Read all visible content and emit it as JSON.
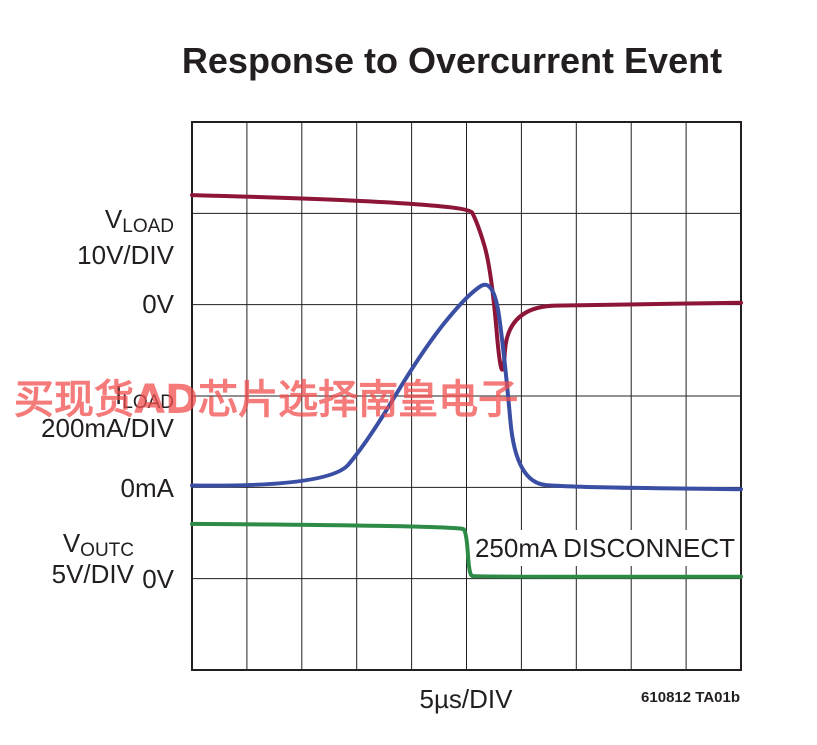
{
  "chart_data": {
    "type": "line",
    "title": "Response to Overcurrent Event",
    "time_scale": "5µs/DIV",
    "figure_id": "610812 TA01b",
    "annotation": "250mA DISCONNECT",
    "x_divisions": 10,
    "y_divisions": 6,
    "grid": true,
    "series": [
      {
        "name": "VLOAD",
        "name_main": "V",
        "name_sub": "LOAD",
        "scale": "10V/DIV",
        "zero_label": "0V",
        "zero_div": 4,
        "color": "#8c1538",
        "points": [
          [
            0,
            5.2
          ],
          [
            5.0,
            5.12
          ],
          [
            5.2,
            4.9
          ],
          [
            5.45,
            4.4
          ],
          [
            5.65,
            3.0
          ],
          [
            5.75,
            3.98
          ],
          [
            7.5,
            4.0
          ],
          [
            10,
            4.02
          ]
        ]
      },
      {
        "name": "ILOAD",
        "name_main": "I",
        "name_sub": "LOAD",
        "scale": "200mA/DIV",
        "zero_label": "0mA",
        "zero_div": 2,
        "color": "#3a4fa3",
        "points": [
          [
            0,
            2.02
          ],
          [
            2.5,
            2.0
          ],
          [
            3.2,
            2.5
          ],
          [
            4.2,
            3.5
          ],
          [
            5.0,
            4.1
          ],
          [
            5.5,
            4.3
          ],
          [
            5.7,
            3.4
          ],
          [
            5.9,
            2.05
          ],
          [
            7,
            2.0
          ],
          [
            10,
            1.98
          ]
        ]
      },
      {
        "name": "VOUTC",
        "name_main": "V",
        "name_sub": "OUTC",
        "scale": "5V/DIV",
        "zero_label": "0V",
        "zero_div": 1,
        "color": "#2e8b47",
        "points": [
          [
            0,
            1.6
          ],
          [
            4.9,
            1.58
          ],
          [
            5.0,
            1.5
          ],
          [
            5.05,
            1.04
          ],
          [
            5.15,
            1.02
          ],
          [
            10,
            1.02
          ]
        ]
      }
    ]
  },
  "watermark": "买现货AD芯片选择南皇电子"
}
